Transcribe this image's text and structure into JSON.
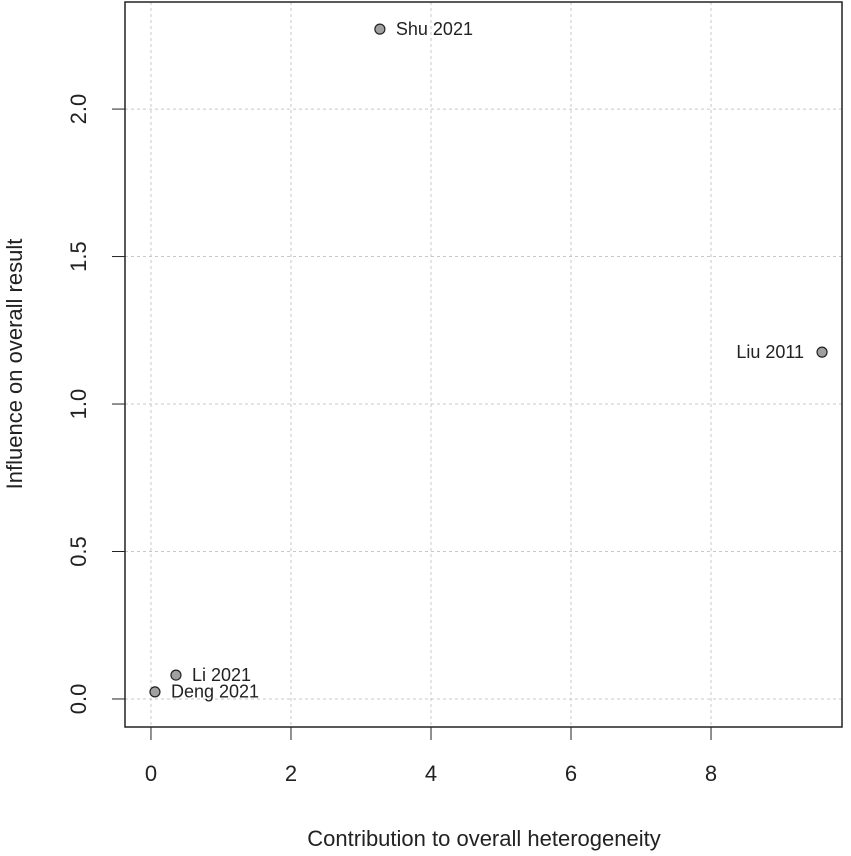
{
  "chart_data": {
    "type": "scatter",
    "xlabel": "Contribution to overall heterogeneity",
    "ylabel": "Influence on overall result",
    "x": [
      3.27,
      9.586,
      0.357,
      0.057
    ],
    "values": [
      2.271,
      1.176,
      0.081,
      0.024
    ],
    "labels": [
      "Shu  2021",
      "Liu  2011",
      "Li 2021",
      "Deng  2021"
    ],
    "color": "#a0a0a0",
    "xlim": [
      -0.371,
      9.871
    ],
    "ylim": [
      -0.095,
      2.363
    ],
    "xticks": [
      0,
      2,
      4,
      6,
      8
    ],
    "yticks": [
      {
        "value": 0,
        "label": "0.0"
      },
      0.5,
      {
        "value": 1,
        "label": "1.0"
      },
      1.5,
      {
        "value": 2,
        "label": "2.0"
      }
    ],
    "grid": true
  }
}
